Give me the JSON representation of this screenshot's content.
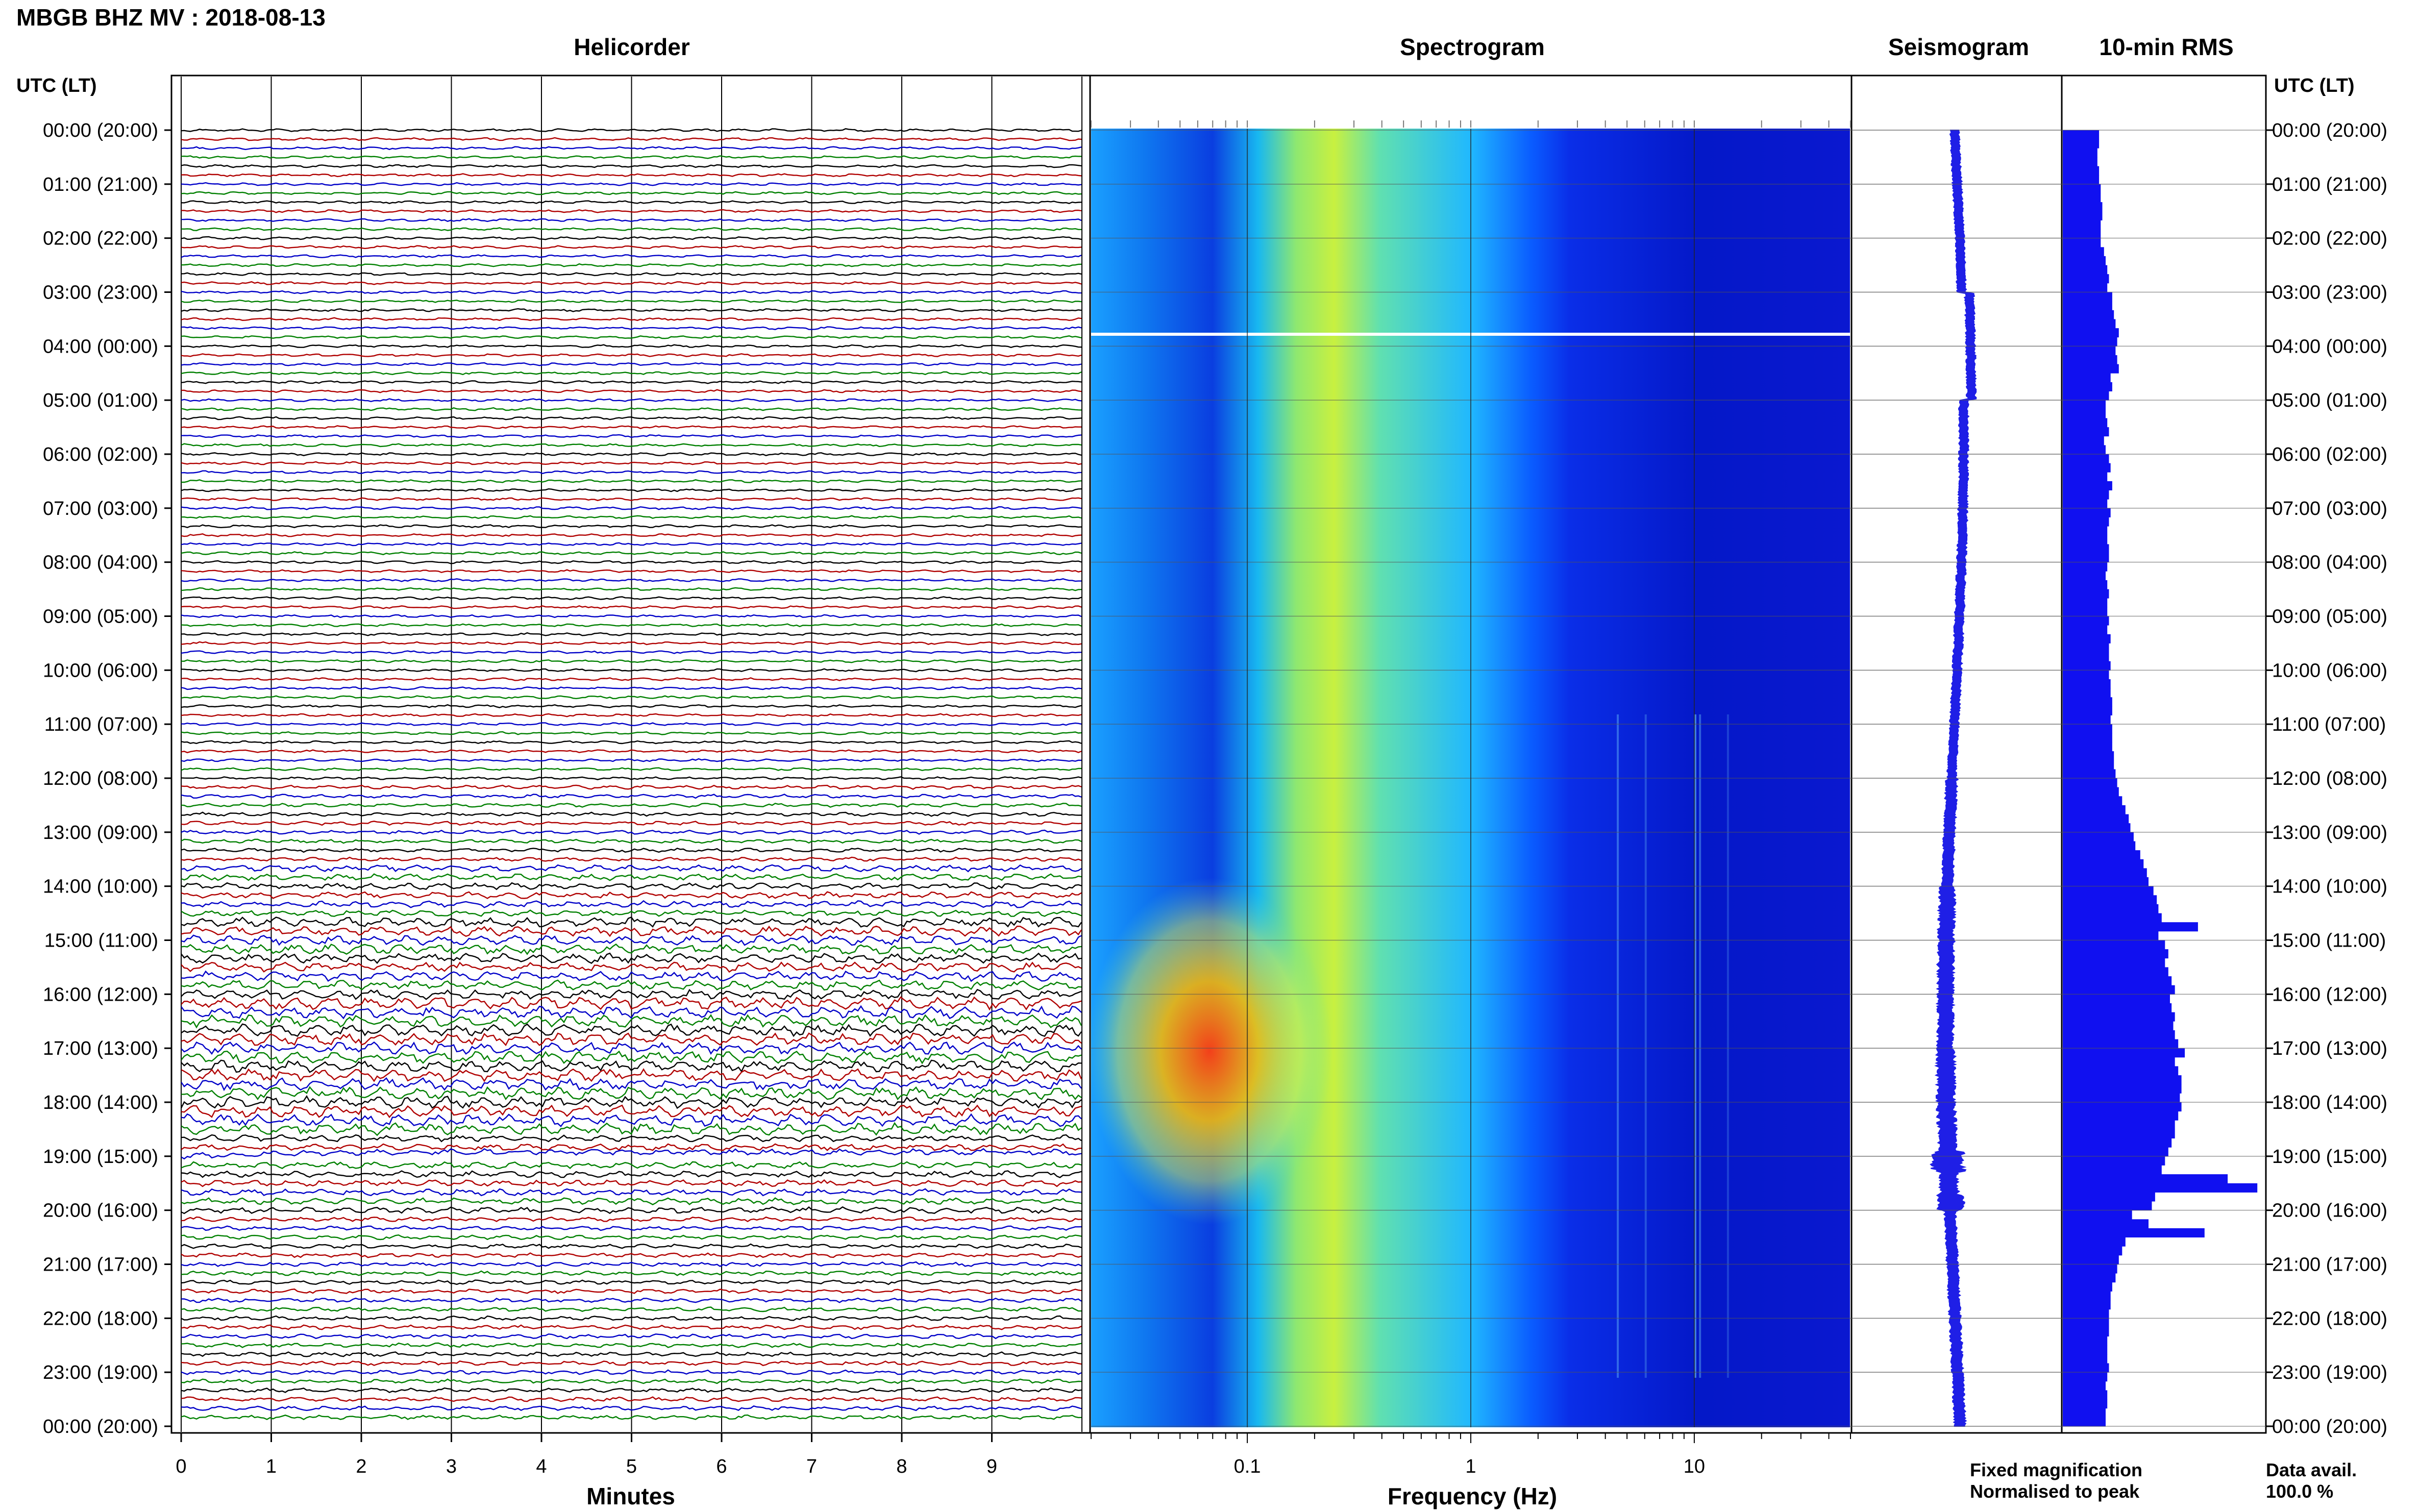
{
  "header": {
    "title": "MBGB BHZ MV : 2018-08-13"
  },
  "panels": {
    "helicorder": "Helicorder",
    "spectrogram": "Spectrogram",
    "seismogram": "Seismogram",
    "rms": "10-min RMS"
  },
  "axes": {
    "time_header": "UTC (LT)",
    "helicorder_xlabel": "Minutes",
    "spectrogram_xlabel": "Frequency (Hz)",
    "minutes_ticks": [
      "0",
      "1",
      "2",
      "3",
      "4",
      "5",
      "6",
      "7",
      "8",
      "9"
    ],
    "freq_ticks": [
      "0.1",
      "1",
      "10"
    ]
  },
  "legend": {
    "fixed": "Fixed magnification",
    "normalised": "Normalised to peak",
    "fixed_color": "#1f1fe6",
    "normalised_color": "#e61f1f"
  },
  "availability": {
    "label": "Data avail.",
    "value": "100.0 %"
  },
  "chart_data": {
    "type": "heatmap",
    "title": "MBGB BHZ MV : 2018-08-13",
    "station": "MBGB",
    "channel": "BHZ",
    "network": "MV",
    "date": "2018-08-13",
    "time_labels": [
      "00:00 (20:00)",
      "01:00 (21:00)",
      "02:00 (22:00)",
      "03:00 (23:00)",
      "04:00 (00:00)",
      "05:00 (01:00)",
      "06:00 (02:00)",
      "07:00 (03:00)",
      "08:00 (04:00)",
      "09:00 (05:00)",
      "10:00 (06:00)",
      "11:00 (07:00)",
      "12:00 (08:00)",
      "13:00 (09:00)",
      "14:00 (10:00)",
      "15:00 (11:00)",
      "16:00 (12:00)",
      "17:00 (13:00)",
      "18:00 (14:00)",
      "19:00 (15:00)",
      "20:00 (16:00)",
      "21:00 (17:00)",
      "22:00 (18:00)",
      "23:00 (19:00)",
      "00:00 (20:00)"
    ],
    "helicorder": {
      "xlabel": "Minutes",
      "xlim": [
        0,
        10
      ],
      "trace_colors": [
        "#000000",
        "#b00000",
        "#0000c8",
        "#008000"
      ],
      "rows_per_hour": 6
    },
    "spectrogram": {
      "xlabel": "Frequency (Hz)",
      "scale": "log",
      "xlim": [
        0.02,
        50
      ],
      "colormap": [
        "#0000a0",
        "#0020ff",
        "#00a0ff",
        "#30e0d0",
        "#c0f040",
        "#ffd000",
        "#ff4000",
        "#c00000"
      ]
    },
    "rms_10min": {
      "relative_values": [
        0.22,
        0.22,
        0.21,
        0.21,
        0.22,
        0.22,
        0.23,
        0.23,
        0.24,
        0.24,
        0.23,
        0.23,
        0.23,
        0.25,
        0.26,
        0.27,
        0.28,
        0.27,
        0.3,
        0.3,
        0.31,
        0.32,
        0.34,
        0.33,
        0.32,
        0.33,
        0.34,
        0.29,
        0.3,
        0.28,
        0.26,
        0.26,
        0.27,
        0.28,
        0.25,
        0.26,
        0.28,
        0.29,
        0.27,
        0.3,
        0.28,
        0.27,
        0.29,
        0.28,
        0.27,
        0.27,
        0.28,
        0.28,
        0.27,
        0.26,
        0.27,
        0.28,
        0.27,
        0.27,
        0.28,
        0.27,
        0.29,
        0.28,
        0.28,
        0.29,
        0.28,
        0.29,
        0.29,
        0.3,
        0.3,
        0.29,
        0.3,
        0.3,
        0.3,
        0.31,
        0.31,
        0.32,
        0.33,
        0.34,
        0.36,
        0.38,
        0.4,
        0.41,
        0.43,
        0.44,
        0.47,
        0.49,
        0.51,
        0.52,
        0.55,
        0.57,
        0.58,
        0.6,
        0.82,
        0.58,
        0.62,
        0.64,
        0.62,
        0.64,
        0.66,
        0.68,
        0.65,
        0.66,
        0.68,
        0.67,
        0.68,
        0.7,
        0.74,
        0.68,
        0.7,
        0.72,
        0.72,
        0.71,
        0.72,
        0.7,
        0.68,
        0.68,
        0.66,
        0.64,
        0.62,
        0.6,
        1.0,
        1.18,
        0.56,
        0.54,
        0.42,
        0.52,
        0.86,
        0.38,
        0.36,
        0.34,
        0.33,
        0.32,
        0.3,
        0.29,
        0.29,
        0.28,
        0.28,
        0.28,
        0.27,
        0.27,
        0.27,
        0.28,
        0.27,
        0.26,
        0.27,
        0.27,
        0.26,
        0.26
      ]
    },
    "seismogram": {
      "event_times_utc": [
        "19:00",
        "19:30"
      ]
    }
  }
}
